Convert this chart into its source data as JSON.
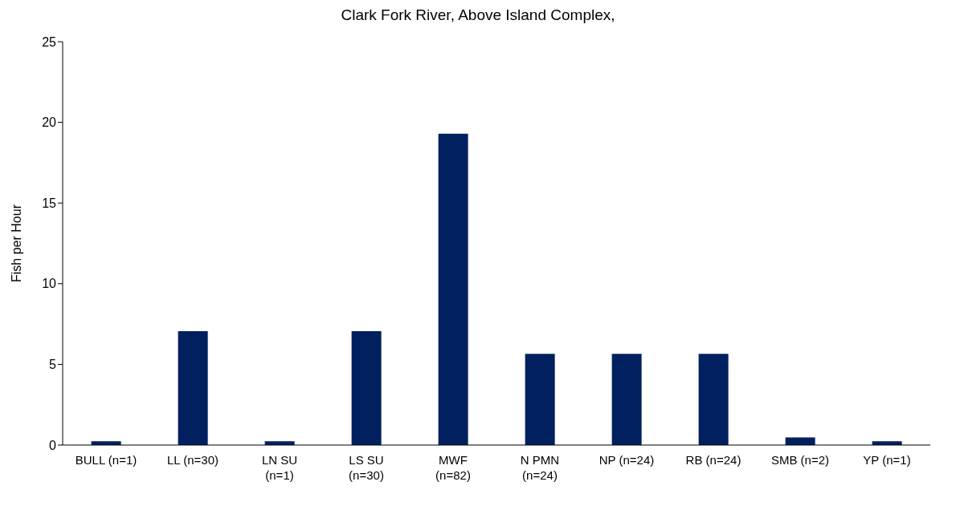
{
  "chart_data": {
    "type": "bar",
    "title": "Clark Fork River, Above Island Complex,",
    "ylabel": "Fish per Hour",
    "categories": [
      "BULL (n=1)",
      "LL (n=30)",
      "LN SU (n=1)",
      "LS SU (n=30)",
      "MWF (n=82)",
      "N PMN (n=24)",
      "NP (n=24)",
      "RB (n=24)",
      "SMB (n=2)",
      "YP (n=1)"
    ],
    "values": [
      0.24,
      7.06,
      0.24,
      7.06,
      19.3,
      5.65,
      5.65,
      5.65,
      0.47,
      0.24
    ],
    "color": "#002060",
    "ylim": [
      0,
      25
    ],
    "yticks": [
      0,
      5,
      10,
      15,
      20,
      25
    ],
    "grid": false
  }
}
